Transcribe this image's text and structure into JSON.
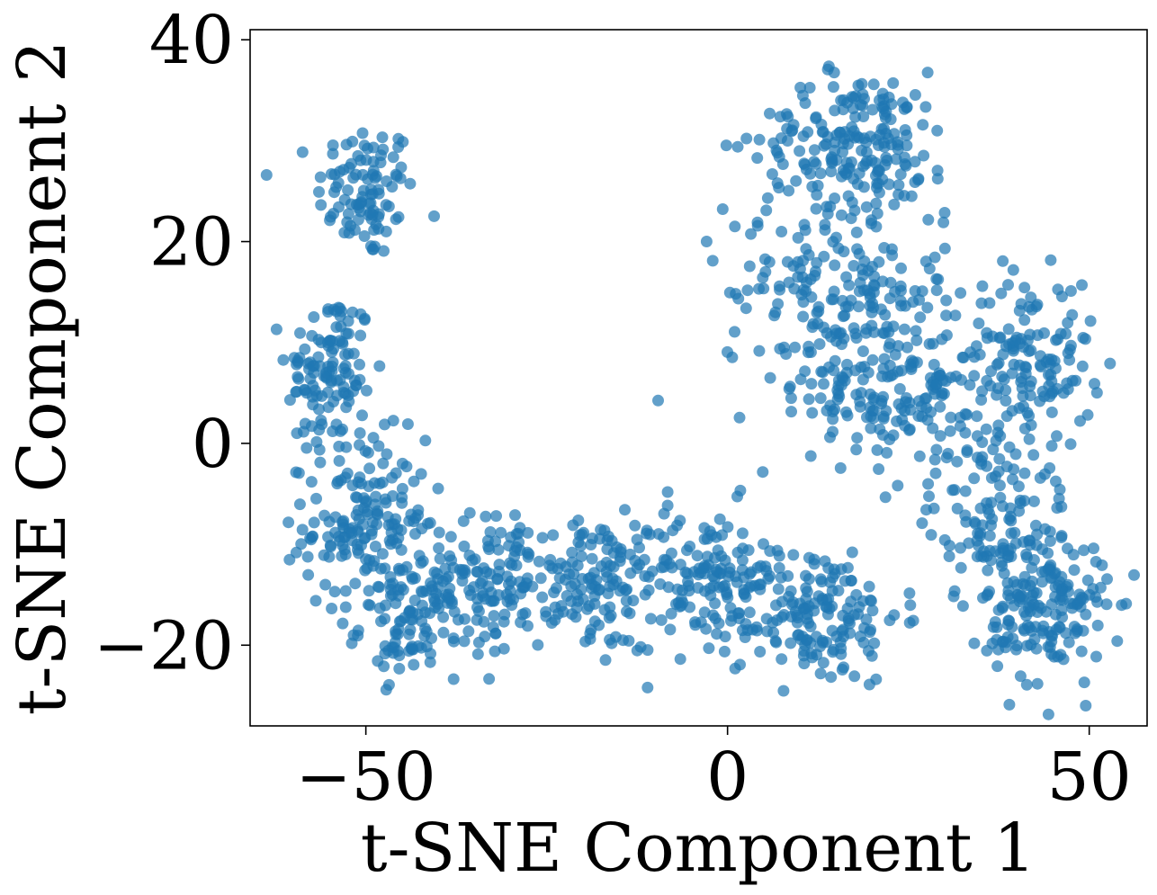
{
  "chart_data": {
    "type": "scatter",
    "title": "",
    "xlabel": "t-SNE Component 1",
    "ylabel": "t-SNE Component 2",
    "xlim": [
      -66,
      58
    ],
    "ylim": [
      -28,
      41
    ],
    "xticks": [
      -50,
      0,
      50
    ],
    "xtick_labels": [
      "−50",
      "0",
      "50"
    ],
    "yticks": [
      -20,
      0,
      20,
      40
    ],
    "ytick_labels": [
      "−20",
      "0",
      "20",
      "40"
    ],
    "grid": false,
    "legend": "none",
    "color": "#1f77b4",
    "clusters": [
      {
        "cx": -50,
        "cy": 25,
        "sx": 4,
        "sy": 4,
        "n": 100
      },
      {
        "cx": -55,
        "cy": 7,
        "sx": 3.5,
        "sy": 5,
        "n": 120
      },
      {
        "cx": -50,
        "cy": -8,
        "sx": 5,
        "sy": 5,
        "n": 170
      },
      {
        "cx": -44,
        "cy": -18,
        "sx": 4,
        "sy": 3,
        "n": 80
      },
      {
        "cx": -33,
        "cy": -14,
        "sx": 6,
        "sy": 4,
        "n": 140
      },
      {
        "cx": -18,
        "cy": -14,
        "sx": 6,
        "sy": 4,
        "n": 130
      },
      {
        "cx": -3,
        "cy": -13,
        "sx": 6,
        "sy": 4,
        "n": 120
      },
      {
        "cx": 12,
        "cy": -17,
        "sx": 7,
        "sy": 4,
        "n": 170
      },
      {
        "cx": 18,
        "cy": 30,
        "sx": 8,
        "sy": 4,
        "n": 190
      },
      {
        "cx": 15,
        "cy": 15,
        "sx": 9,
        "sy": 6,
        "n": 200
      },
      {
        "cx": 25,
        "cy": 5,
        "sx": 8,
        "sy": 5,
        "n": 170
      },
      {
        "cx": 42,
        "cy": 8,
        "sx": 5,
        "sy": 5,
        "n": 130
      },
      {
        "cx": 38,
        "cy": -8,
        "sx": 6,
        "sy": 5,
        "n": 130
      },
      {
        "cx": 44,
        "cy": -17,
        "sx": 5,
        "sy": 4,
        "n": 150
      }
    ]
  }
}
